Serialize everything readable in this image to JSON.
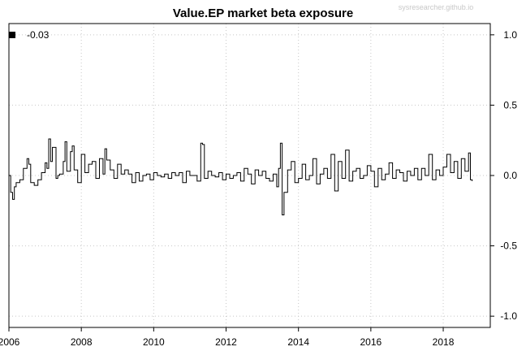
{
  "watermark": "sysresearcher.github.io",
  "chart_data": {
    "type": "line",
    "title": "Value.EP market beta exposure",
    "xlabel": "",
    "ylabel": "",
    "x_ticks": [
      "2006",
      "2008",
      "2010",
      "2012",
      "2014",
      "2016",
      "2018"
    ],
    "y_ticks": [
      "-1.0",
      "-0.5",
      "0.0",
      "0.5",
      "1.0"
    ],
    "xlim": [
      2006.0,
      2019.3
    ],
    "ylim": [
      -1.08,
      1.08
    ],
    "y_axis_side": "right",
    "grid": true,
    "legend": {
      "position": "top-left",
      "entries": [
        {
          "label": "-0.03",
          "color": "#000000"
        }
      ]
    },
    "series": [
      {
        "color": "#000000",
        "x": [
          2006.0,
          2006.05,
          2006.1,
          2006.15,
          2006.2,
          2006.3,
          2006.4,
          2006.5,
          2006.55,
          2006.6,
          2006.7,
          2006.8,
          2006.9,
          2007.0,
          2007.05,
          2007.1,
          2007.15,
          2007.2,
          2007.3,
          2007.35,
          2007.4,
          2007.5,
          2007.55,
          2007.6,
          2007.7,
          2007.75,
          2007.8,
          2007.9,
          2008.0,
          2008.1,
          2008.2,
          2008.3,
          2008.4,
          2008.5,
          2008.6,
          2008.65,
          2008.7,
          2008.8,
          2008.9,
          2009.0,
          2009.1,
          2009.2,
          2009.3,
          2009.4,
          2009.5,
          2009.6,
          2009.7,
          2009.8,
          2009.9,
          2010.0,
          2010.1,
          2010.2,
          2010.3,
          2010.4,
          2010.5,
          2010.6,
          2010.7,
          2010.8,
          2010.9,
          2011.0,
          2011.1,
          2011.2,
          2011.3,
          2011.35,
          2011.4,
          2011.5,
          2011.6,
          2011.7,
          2011.8,
          2011.9,
          2012.0,
          2012.1,
          2012.2,
          2012.3,
          2012.4,
          2012.5,
          2012.6,
          2012.7,
          2012.8,
          2012.9,
          2013.0,
          2013.1,
          2013.2,
          2013.3,
          2013.4,
          2013.45,
          2013.5,
          2013.55,
          2013.6,
          2013.7,
          2013.8,
          2013.9,
          2014.0,
          2014.1,
          2014.2,
          2014.3,
          2014.4,
          2014.5,
          2014.6,
          2014.7,
          2014.8,
          2014.9,
          2015.0,
          2015.1,
          2015.2,
          2015.3,
          2015.4,
          2015.5,
          2015.6,
          2015.7,
          2015.8,
          2015.9,
          2016.0,
          2016.1,
          2016.2,
          2016.3,
          2016.4,
          2016.5,
          2016.6,
          2016.7,
          2016.8,
          2016.9,
          2017.0,
          2017.1,
          2017.2,
          2017.3,
          2017.4,
          2017.5,
          2017.6,
          2017.7,
          2017.8,
          2017.9,
          2018.0,
          2018.1,
          2018.2,
          2018.3,
          2018.4,
          2018.5,
          2018.6,
          2018.7,
          2018.75,
          2018.8
        ],
        "y": [
          0.0,
          -0.12,
          -0.17,
          -0.08,
          -0.05,
          -0.03,
          0.05,
          0.12,
          0.08,
          -0.05,
          -0.07,
          -0.03,
          0.02,
          0.09,
          0.05,
          0.26,
          0.1,
          0.2,
          -0.02,
          0.0,
          0.01,
          0.1,
          0.24,
          0.03,
          0.17,
          0.21,
          0.04,
          -0.05,
          0.15,
          0.02,
          0.08,
          0.1,
          -0.02,
          0.12,
          0.01,
          0.19,
          0.11,
          0.04,
          -0.02,
          0.08,
          0.01,
          0.04,
          0.01,
          -0.05,
          0.02,
          -0.04,
          0.0,
          0.01,
          -0.03,
          0.02,
          0.0,
          -0.01,
          0.01,
          -0.02,
          0.02,
          0.0,
          0.02,
          -0.05,
          0.03,
          0.0,
          0.0,
          -0.04,
          0.23,
          0.22,
          -0.02,
          0.03,
          0.0,
          -0.01,
          0.02,
          -0.03,
          0.01,
          -0.02,
          0.0,
          0.02,
          -0.04,
          0.05,
          0.01,
          -0.06,
          0.04,
          0.0,
          0.03,
          -0.02,
          -0.04,
          0.01,
          -0.08,
          0.05,
          0.23,
          -0.28,
          -0.12,
          0.04,
          0.1,
          -0.05,
          -0.02,
          0.08,
          -0.03,
          0.0,
          0.12,
          -0.06,
          0.01,
          0.05,
          -0.02,
          0.15,
          -0.11,
          0.1,
          -0.02,
          0.18,
          -0.04,
          0.03,
          0.05,
          -0.02,
          0.0,
          0.07,
          0.03,
          -0.08,
          0.05,
          -0.03,
          0.01,
          0.09,
          -0.02,
          0.04,
          0.02,
          -0.04,
          0.03,
          0.0,
          0.05,
          -0.03,
          0.05,
          0.0,
          0.15,
          -0.03,
          0.04,
          0.0,
          0.06,
          0.15,
          0.02,
          0.1,
          -0.02,
          0.12,
          0.03,
          0.16,
          -0.03,
          -0.04
        ]
      }
    ]
  }
}
